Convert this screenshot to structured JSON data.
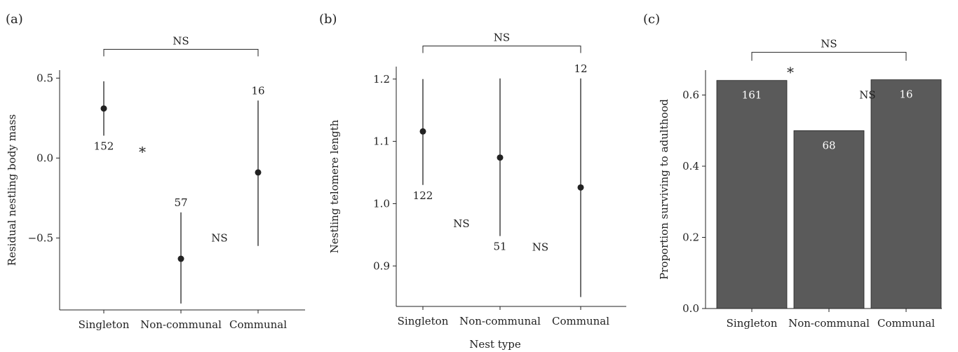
{
  "figure": {
    "x_axis_title": "Nest type"
  },
  "chart_data": [
    {
      "panel": "(a)",
      "type": "scatter",
      "style": "point-range",
      "ylabel": "Residual nestling body mass",
      "categories": [
        "Singleton",
        "Non-communal",
        "Communal"
      ],
      "ylim": [
        -0.95,
        0.55
      ],
      "yticks": [
        -0.5,
        0.0,
        0.5
      ],
      "ytick_labels": [
        "−0.5",
        "0.0",
        "0.5"
      ],
      "points": [
        {
          "category": "Singleton",
          "value": 0.31,
          "low": 0.14,
          "high": 0.48,
          "n_label": "152",
          "label_pos": "below"
        },
        {
          "category": "Non-communal",
          "value": -0.63,
          "low": -0.91,
          "high": -0.34,
          "n_label": "57",
          "label_pos": "above"
        },
        {
          "category": "Communal",
          "value": -0.09,
          "low": -0.55,
          "high": 0.36,
          "n_label": "16",
          "label_pos": "above"
        }
      ],
      "comparisons": [
        {
          "label": "NS",
          "from": "Singleton",
          "to": "Communal",
          "style": "bracket",
          "y": 0.68
        },
        {
          "label": "*",
          "between": [
            "Singleton",
            "Non-communal"
          ],
          "y": 0.03
        },
        {
          "label": "NS",
          "between": [
            "Non-communal",
            "Communal"
          ],
          "y": -0.5
        }
      ],
      "grid": false
    },
    {
      "panel": "(b)",
      "type": "scatter",
      "style": "point-range",
      "ylabel": "Nestling telomere length",
      "categories": [
        "Singleton",
        "Non-communal",
        "Communal"
      ],
      "ylim": [
        0.835,
        1.22
      ],
      "yticks": [
        0.9,
        1.0,
        1.1,
        1.2
      ],
      "ytick_labels": [
        "0.9",
        "1.0",
        "1.1",
        "1.2"
      ],
      "points": [
        {
          "category": "Singleton",
          "value": 1.116,
          "low": 1.03,
          "high": 1.2,
          "n_label": "122",
          "label_pos": "below"
        },
        {
          "category": "Non-communal",
          "value": 1.074,
          "low": 0.948,
          "high": 1.201,
          "n_label": "51",
          "label_pos": "below"
        },
        {
          "category": "Communal",
          "value": 1.026,
          "low": 0.85,
          "high": 1.201,
          "n_label": "12",
          "label_pos": "above"
        }
      ],
      "comparisons": [
        {
          "label": "NS",
          "from": "Singleton",
          "to": "Communal",
          "style": "bracket",
          "y": 1.253
        },
        {
          "label": "NS",
          "between": [
            "Singleton",
            "Non-communal"
          ],
          "y": 0.968
        },
        {
          "label": "NS",
          "between": [
            "Non-communal",
            "Communal"
          ],
          "y": 0.93
        }
      ],
      "grid": false
    },
    {
      "panel": "(c)",
      "type": "bar",
      "ylabel": "Proportion surviving to adulthood",
      "categories": [
        "Singleton",
        "Non-communal",
        "Communal"
      ],
      "values": [
        0.641,
        0.5,
        0.643
      ],
      "n_labels": [
        "161",
        "68",
        "16"
      ],
      "ylim": [
        0,
        0.67
      ],
      "yticks": [
        0.0,
        0.2,
        0.4,
        0.6
      ],
      "ytick_labels": [
        "0.0",
        "0.2",
        "0.4",
        "0.6"
      ],
      "bar_color": "#5a5a5a",
      "comparisons": [
        {
          "label": "NS",
          "from": "Singleton",
          "to": "Communal",
          "style": "bracket",
          "y": 0.72
        },
        {
          "label": "*",
          "between": [
            "Singleton",
            "Non-communal"
          ],
          "y": 0.66
        },
        {
          "label": "NS",
          "between": [
            "Non-communal",
            "Communal"
          ],
          "y": 0.6
        }
      ],
      "grid": false
    }
  ]
}
